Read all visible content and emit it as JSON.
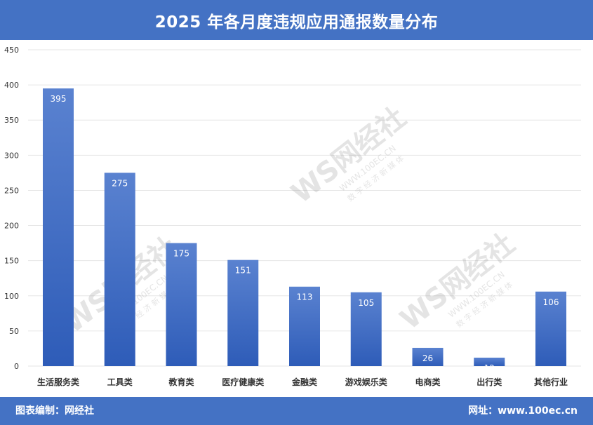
{
  "header": {
    "title": "2025 年各月度违规应用通报数量分布"
  },
  "footer": {
    "editor": "图表编制：网经社",
    "website": "网址：www.100ec.cn"
  },
  "watermark": {
    "logo": "WS网经社",
    "url": "WWW.100EC.CN",
    "tagline": "数 字 经 济 新 媒 体"
  },
  "colors": {
    "header_bg": "#4472c4",
    "bar_top": "#5a82d0",
    "bar_bottom": "#2e5cb8",
    "grid": "#e6e6e6",
    "axis_text": "#333333",
    "label_text": "#ffffff"
  },
  "chart_data": {
    "type": "bar",
    "title": "2025 年各月度违规应用通报数量分布",
    "categories": [
      "生活服务类",
      "工具类",
      "教育类",
      "医疗健康类",
      "金融类",
      "游戏娱乐类",
      "电商类",
      "出行类",
      "其他行业"
    ],
    "values": [
      395,
      275,
      175,
      151,
      113,
      105,
      26,
      12,
      106
    ],
    "yticks": [
      0,
      50,
      100,
      150,
      200,
      250,
      300,
      350,
      400,
      450
    ],
    "ylim": [
      0,
      450
    ],
    "xlabel": "",
    "ylabel": "",
    "grid": true,
    "data_labels": true
  }
}
